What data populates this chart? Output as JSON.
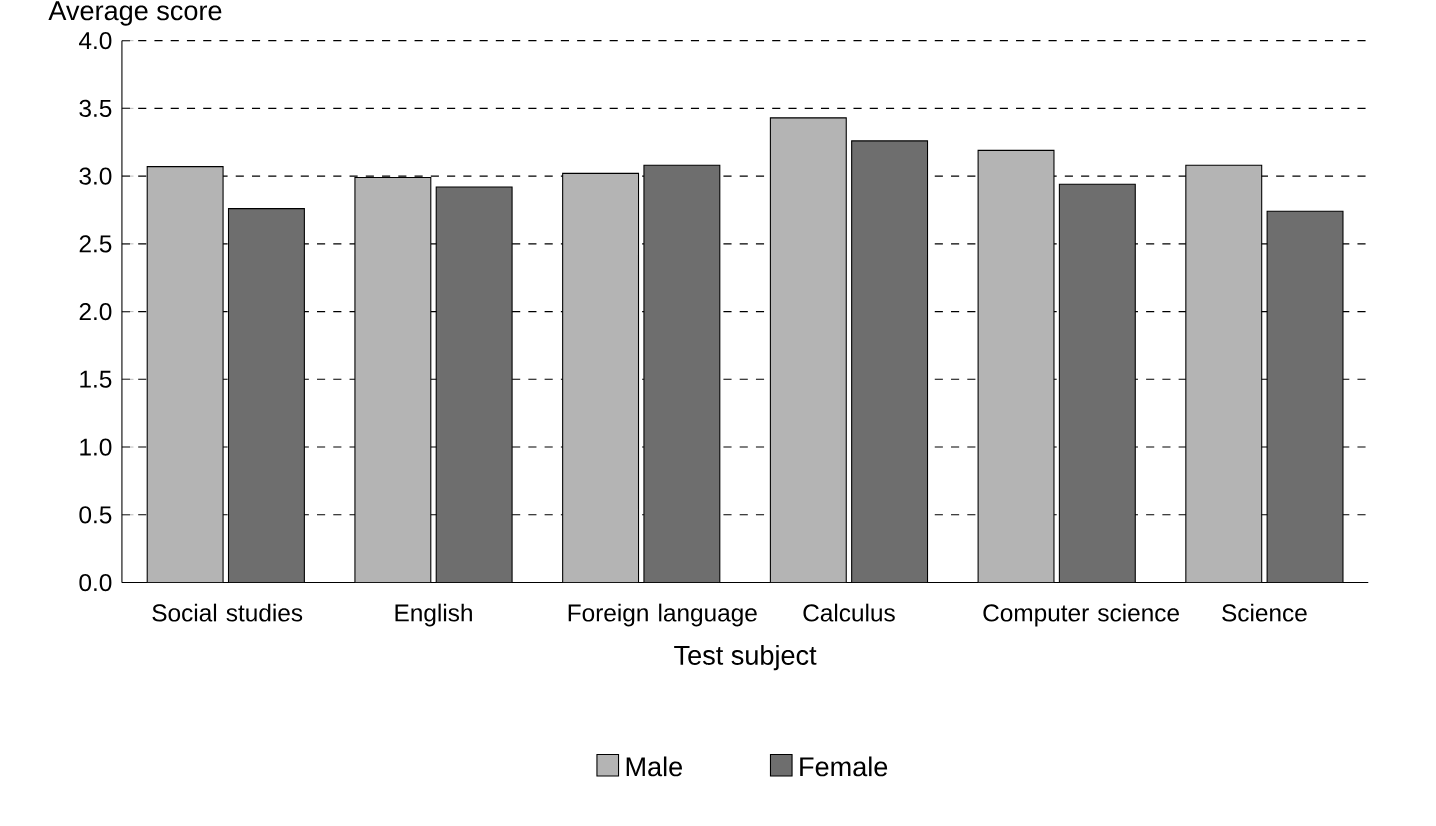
{
  "chart_data": {
    "type": "bar",
    "ylabel": "Average score",
    "xlabel": "Test subject",
    "categories": [
      "Social studies",
      "English",
      "Foreign language",
      "Calculus",
      "Computer science",
      "Science"
    ],
    "series": [
      {
        "name": "Male",
        "color": "#b4b4b4",
        "values": [
          3.07,
          2.99,
          3.02,
          3.43,
          3.19,
          3.08
        ]
      },
      {
        "name": "Female",
        "color": "#6e6e6e",
        "values": [
          2.76,
          2.92,
          3.08,
          3.26,
          2.94,
          2.74
        ]
      }
    ],
    "ylim": [
      0,
      4
    ],
    "yticks": [
      {
        "value": 0,
        "label": "0.0"
      },
      {
        "value": 0.5,
        "label": "0.5"
      },
      {
        "value": 1,
        "label": "1.0"
      },
      {
        "value": 1.5,
        "label": "1.5"
      },
      {
        "value": 2,
        "label": "2.0"
      },
      {
        "value": 2.5,
        "label": "2.5"
      },
      {
        "value": 3,
        "label": "3.0"
      },
      {
        "value": 3.5,
        "label": "3.5"
      },
      {
        "value": 4,
        "label": "4.0"
      }
    ],
    "grid": "y",
    "legend": "bottom"
  }
}
